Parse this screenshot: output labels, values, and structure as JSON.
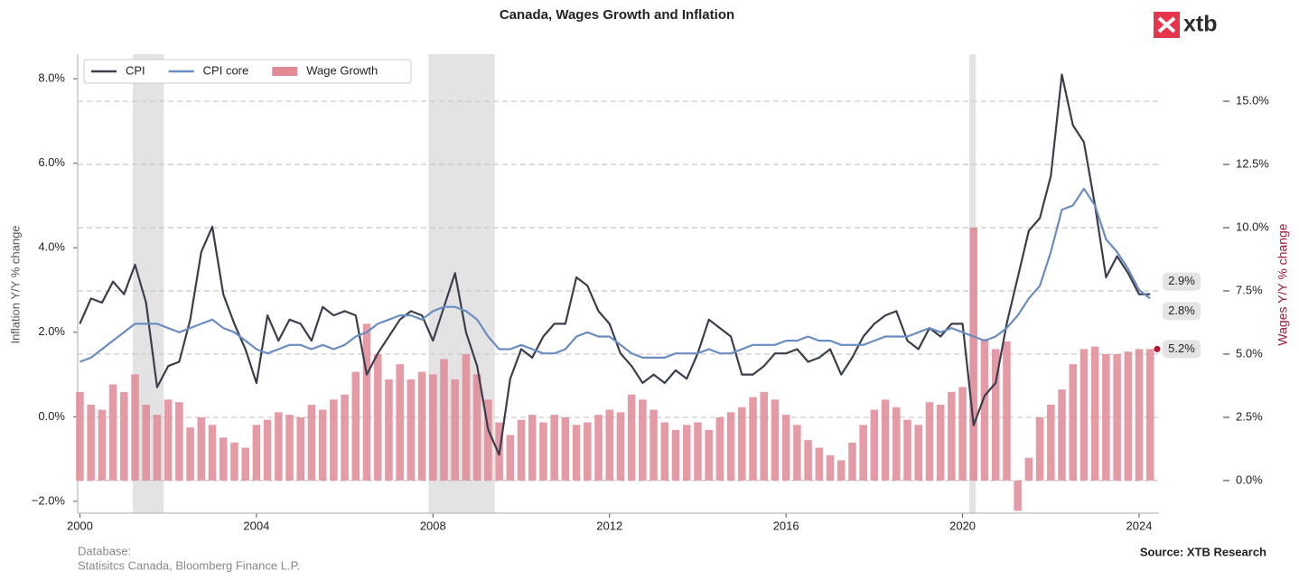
{
  "chart_data": {
    "type": "line_bar_dual",
    "title": "Canada, Wages Growth and Inflation",
    "logo": "xtb",
    "ylabel": "Inflation Y/Y % change",
    "y2label": "Wages Y/Y % change",
    "footnote_title": "Database:",
    "footnote": "Statisitcs Canada, Bloomberg Finance L.P.",
    "source": "Source: XTB Research",
    "xlim": [
      1999.95,
      2024.45
    ],
    "xticks": [
      2000,
      2004,
      2008,
      2012,
      2016,
      2020,
      2024
    ],
    "ylim": [
      -2.28,
      8.58
    ],
    "yticks": [
      {
        "value": -2,
        "label": "−2.0%"
      },
      {
        "value": 0,
        "label": "0.0%"
      },
      {
        "value": 2,
        "label": "2.0%"
      },
      {
        "value": 4,
        "label": "4.0%"
      },
      {
        "value": 6,
        "label": "6.0%"
      },
      {
        "value": 8,
        "label": "8.0%"
      }
    ],
    "y2lim": [
      -1.29,
      16.86
    ],
    "y2ticks": [
      {
        "value": 0,
        "label": "0.0%"
      },
      {
        "value": 2.5,
        "label": "2.5%"
      },
      {
        "value": 5,
        "label": "5.0%"
      },
      {
        "value": 7.5,
        "label": "7.5%"
      },
      {
        "value": 10,
        "label": "10.0%"
      },
      {
        "value": 12.5,
        "label": "12.5%"
      },
      {
        "value": 15,
        "label": "15.0%"
      }
    ],
    "grid": true,
    "legend_position": "upper left",
    "shaded_regions": [
      [
        2001.2,
        2001.9
      ],
      [
        2007.9,
        2009.4
      ],
      [
        2020.15,
        2020.3
      ]
    ],
    "x": [
      2000,
      2000.25,
      2000.5,
      2000.75,
      2001,
      2001.25,
      2001.5,
      2001.75,
      2002,
      2002.25,
      2002.5,
      2002.75,
      2003,
      2003.25,
      2003.5,
      2003.75,
      2004,
      2004.25,
      2004.5,
      2004.75,
      2005,
      2005.25,
      2005.5,
      2005.75,
      2006,
      2006.25,
      2006.5,
      2006.75,
      2007,
      2007.25,
      2007.5,
      2007.75,
      2008,
      2008.25,
      2008.5,
      2008.75,
      2009,
      2009.25,
      2009.5,
      2009.75,
      2010,
      2010.25,
      2010.5,
      2010.75,
      2011,
      2011.25,
      2011.5,
      2011.75,
      2012,
      2012.25,
      2012.5,
      2012.75,
      2013,
      2013.25,
      2013.5,
      2013.75,
      2014,
      2014.25,
      2014.5,
      2014.75,
      2015,
      2015.25,
      2015.5,
      2015.75,
      2016,
      2016.25,
      2016.5,
      2016.75,
      2017,
      2017.25,
      2017.5,
      2017.75,
      2018,
      2018.25,
      2018.5,
      2018.75,
      2019,
      2019.25,
      2019.5,
      2019.75,
      2020,
      2020.25,
      2020.5,
      2020.75,
      2021,
      2021.25,
      2021.5,
      2021.75,
      2022,
      2022.25,
      2022.5,
      2022.75,
      2023,
      2023.25,
      2023.5,
      2023.75,
      2024,
      2024.25
    ],
    "series": [
      {
        "name": "CPI",
        "kind": "line",
        "color": "#3a3f4b",
        "end_label": "2.9%",
        "values": [
          2.2,
          2.8,
          2.7,
          3.2,
          2.9,
          3.6,
          2.7,
          0.7,
          1.2,
          1.3,
          2.3,
          3.9,
          4.5,
          2.9,
          2.2,
          1.6,
          0.8,
          2.4,
          1.8,
          2.3,
          2.2,
          1.8,
          2.6,
          2.4,
          2.5,
          2.4,
          1.0,
          1.5,
          1.9,
          2.3,
          2.5,
          2.4,
          1.8,
          2.6,
          3.4,
          2.0,
          1.2,
          -0.3,
          -0.9,
          0.9,
          1.6,
          1.4,
          1.9,
          2.2,
          2.2,
          3.3,
          3.1,
          2.5,
          2.2,
          1.5,
          1.2,
          0.8,
          1.0,
          0.8,
          1.1,
          0.9,
          1.5,
          2.3,
          2.1,
          1.9,
          1.0,
          1.0,
          1.2,
          1.5,
          1.5,
          1.6,
          1.3,
          1.4,
          1.6,
          1.0,
          1.4,
          1.9,
          2.2,
          2.4,
          2.5,
          1.8,
          1.6,
          2.1,
          1.9,
          2.2,
          2.2,
          -0.2,
          0.5,
          0.8,
          2.2,
          3.3,
          4.4,
          4.7,
          5.7,
          8.1,
          6.9,
          6.5,
          5.0,
          3.3,
          3.8,
          3.4,
          2.9,
          2.9
        ]
      },
      {
        "name": "CPI core",
        "kind": "line",
        "color": "#6a8cc2",
        "end_label": "2.8%",
        "values": [
          1.3,
          1.4,
          1.6,
          1.8,
          2.0,
          2.2,
          2.2,
          2.2,
          2.1,
          2.0,
          2.1,
          2.2,
          2.3,
          2.1,
          2.0,
          1.8,
          1.6,
          1.5,
          1.6,
          1.7,
          1.7,
          1.6,
          1.7,
          1.6,
          1.7,
          1.9,
          2.0,
          2.2,
          2.3,
          2.4,
          2.4,
          2.3,
          2.5,
          2.6,
          2.6,
          2.5,
          2.3,
          1.9,
          1.6,
          1.6,
          1.7,
          1.6,
          1.5,
          1.5,
          1.6,
          1.9,
          2.0,
          1.9,
          1.9,
          1.7,
          1.5,
          1.4,
          1.4,
          1.4,
          1.5,
          1.5,
          1.5,
          1.6,
          1.5,
          1.5,
          1.6,
          1.7,
          1.7,
          1.7,
          1.8,
          1.8,
          1.9,
          1.8,
          1.8,
          1.7,
          1.7,
          1.7,
          1.8,
          1.9,
          1.9,
          1.9,
          2.0,
          2.1,
          2.0,
          2.1,
          2.0,
          1.9,
          1.8,
          1.9,
          2.1,
          2.4,
          2.8,
          3.1,
          3.9,
          4.9,
          5.0,
          5.4,
          5.0,
          4.2,
          3.9,
          3.5,
          3.0,
          2.8
        ]
      },
      {
        "name": "Wage Growth",
        "kind": "bar",
        "axis": "y2",
        "color": "#e08a96",
        "end_label": "5.2%",
        "values": [
          3.5,
          3.0,
          2.8,
          3.8,
          3.5,
          4.2,
          3.0,
          2.6,
          3.2,
          3.1,
          2.1,
          2.5,
          2.2,
          1.7,
          1.5,
          1.3,
          2.2,
          2.4,
          2.7,
          2.6,
          2.5,
          3.0,
          2.8,
          3.2,
          3.4,
          4.3,
          6.2,
          5.0,
          4.0,
          4.6,
          4.0,
          4.3,
          4.2,
          4.8,
          4.0,
          5.0,
          4.2,
          3.2,
          2.3,
          1.8,
          2.4,
          2.6,
          2.3,
          2.6,
          2.5,
          2.2,
          2.3,
          2.6,
          2.8,
          2.7,
          3.4,
          3.2,
          2.8,
          2.3,
          2.0,
          2.2,
          2.3,
          2.0,
          2.5,
          2.7,
          2.9,
          3.3,
          3.5,
          3.2,
          2.6,
          2.2,
          1.6,
          1.3,
          1.0,
          0.8,
          1.5,
          2.2,
          2.8,
          3.2,
          2.9,
          2.4,
          2.2,
          3.1,
          3.0,
          3.5,
          3.7,
          10.0,
          5.6,
          5.2,
          5.5,
          -1.2,
          0.9,
          2.5,
          3.0,
          3.6,
          4.6,
          5.2,
          5.3,
          5.0,
          5.0,
          5.1,
          5.2,
          5.2
        ]
      }
    ]
  }
}
